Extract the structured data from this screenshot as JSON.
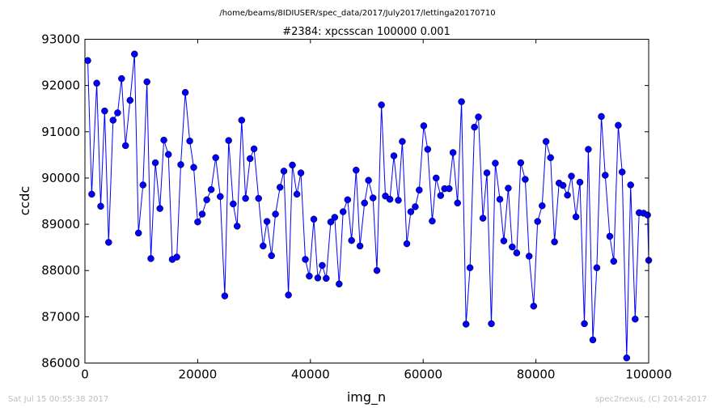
{
  "chart_data": {
    "type": "line",
    "suptitle": "/home/beams/8IDIUSER/spec_data/2017/July2017/lettinga20170710",
    "title": "#2384: xpcsscan 100000 0.001",
    "xlabel": "img_n",
    "ylabel": "ccdc",
    "xlim": [
      0,
      100000
    ],
    "ylim": [
      86000,
      93000
    ],
    "xticks": [
      0,
      20000,
      40000,
      60000,
      80000,
      100000
    ],
    "yticks": [
      86000,
      87000,
      88000,
      89000,
      90000,
      91000,
      92000,
      93000
    ],
    "grid": false,
    "series_color": "#0000ff",
    "x": [
      500,
      1200,
      2100,
      2800,
      3500,
      4200,
      5000,
      5800,
      6500,
      7200,
      8000,
      8800,
      9500,
      10300,
      11000,
      11700,
      12500,
      13300,
      14000,
      14800,
      15500,
      16300,
      17000,
      17800,
      18600,
      19300,
      20000,
      20800,
      21600,
      22400,
      23200,
      24000,
      24800,
      25500,
      26300,
      27000,
      27800,
      28500,
      29300,
      30000,
      30800,
      31600,
      32300,
      33100,
      33800,
      34600,
      35300,
      36100,
      36800,
      37600,
      38300,
      39100,
      39800,
      40600,
      41300,
      42100,
      42800,
      43600,
      44300,
      45100,
      45800,
      46600,
      47300,
      48100,
      48800,
      49600,
      50300,
      51100,
      51800,
      52600,
      53300,
      54100,
      54800,
      55600,
      56300,
      57100,
      57800,
      58600,
      59300,
      60100,
      60800,
      61600,
      62300,
      63100,
      63800,
      64600,
      65300,
      66100,
      66800,
      67600,
      68300,
      69100,
      69800,
      70600,
      71300,
      72100,
      72800,
      73600,
      74300,
      75100,
      75800,
      76600,
      77300,
      78100,
      78800,
      79600,
      80300,
      81100,
      81800,
      82600,
      83300,
      84100,
      84800,
      85600,
      86300,
      87100,
      87800,
      88600,
      89300,
      90100,
      90800,
      91600,
      92300,
      93100,
      93800,
      94600,
      95300,
      96100,
      96800,
      97600,
      98300,
      99100,
      99800,
      100000
    ],
    "y": [
      92540,
      89650,
      92050,
      89390,
      91450,
      88610,
      91250,
      91410,
      92150,
      90700,
      91680,
      92680,
      88810,
      89850,
      92080,
      88260,
      90330,
      89340,
      90820,
      90510,
      88240,
      88290,
      90290,
      91850,
      90800,
      90230,
      89050,
      89220,
      89530,
      89750,
      90440,
      89600,
      87450,
      90810,
      89440,
      88960,
      91250,
      89560,
      90420,
      90630,
      89560,
      88530,
      89060,
      88320,
      89220,
      89800,
      90150,
      87470,
      90280,
      89650,
      90110,
      88240,
      87880,
      89110,
      87840,
      88110,
      87830,
      89050,
      89150,
      87710,
      89270,
      89530,
      88650,
      90170,
      88530,
      89460,
      89950,
      89570,
      88000,
      91580,
      89610,
      89540,
      90480,
      89520,
      90790,
      88580,
      89270,
      89380,
      89740,
      91130,
      90620,
      89070,
      90000,
      89620,
      89770,
      89770,
      90550,
      89460,
      91650,
      86840,
      88060,
      91100,
      91320,
      89130,
      90110,
      86850,
      90320,
      89540,
      88640,
      89780,
      88510,
      88380,
      90330,
      89970,
      88310,
      87230,
      89060,
      89400,
      90790,
      90440,
      88620,
      89890,
      89840,
      89630,
      90040,
      89160,
      89910,
      86850,
      90620,
      86500,
      88060,
      91330,
      90060,
      88740,
      88200,
      91140,
      90130,
      86110,
      89850,
      86950,
      89250,
      89240,
      89200,
      88220
    ]
  },
  "footer": {
    "timestamp": "Sat Jul 15 00:55:38 2017",
    "credit": "spec2nexus, (C) 2014-2017"
  }
}
